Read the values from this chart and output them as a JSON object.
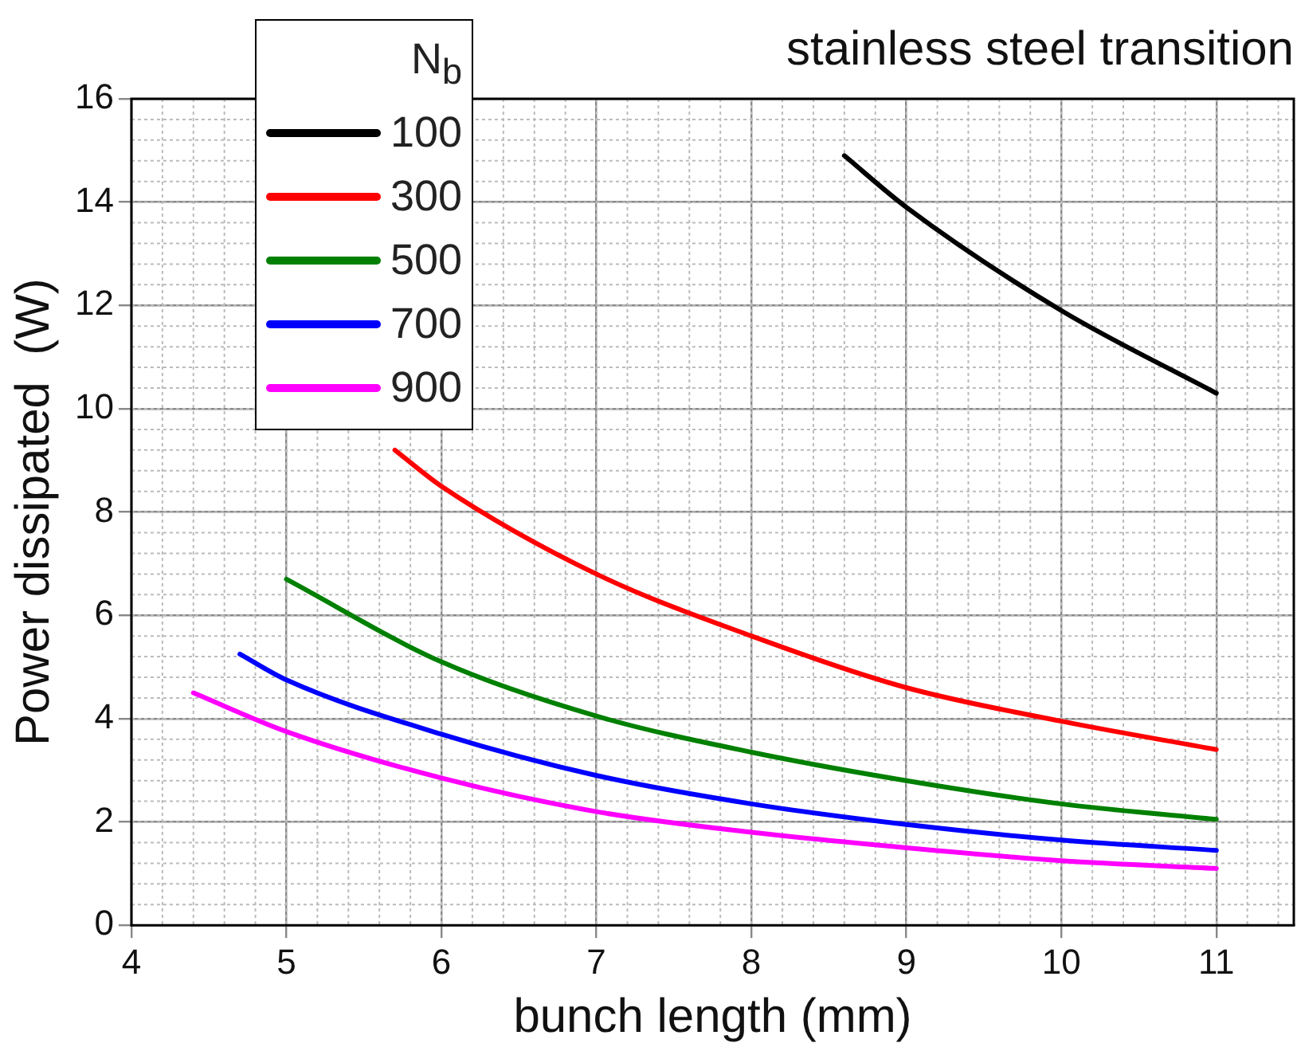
{
  "chart_data": {
    "type": "line",
    "title": "stainless steel transition",
    "xlabel": "bunch length (mm)",
    "ylabel": "Power dissipated  (W)",
    "legend_title": "N$_{b}$",
    "xlim": [
      4,
      11.5
    ],
    "xticks": [
      4,
      5,
      6,
      7,
      8,
      9,
      10,
      11
    ],
    "ylim": [
      0,
      16
    ],
    "yticks": [
      0,
      2,
      4,
      6,
      8,
      10,
      12,
      14,
      16
    ],
    "grid": true,
    "legend": "top left",
    "marker": "none",
    "line_style": "solid",
    "series": [
      {
        "name": "100",
        "color": "#000000",
        "x": [
          8.6,
          9,
          10,
          11
        ],
        "values": [
          14.9,
          13.9,
          11.9,
          10.3
        ]
      },
      {
        "name": "300",
        "color": "#ff0000",
        "x": [
          5.7,
          6,
          7,
          8,
          9,
          10,
          11
        ],
        "values": [
          9.2,
          8.5,
          6.8,
          5.6,
          4.6,
          3.95,
          3.4
        ]
      },
      {
        "name": "500",
        "color": "#008000",
        "x": [
          5,
          6,
          7,
          8,
          9,
          10,
          11
        ],
        "values": [
          6.7,
          5.1,
          4.05,
          3.35,
          2.8,
          2.35,
          2.05
        ]
      },
      {
        "name": "700",
        "color": "#0000ff",
        "x": [
          4.7,
          5,
          6,
          7,
          8,
          9,
          10,
          11
        ],
        "values": [
          5.25,
          4.75,
          3.7,
          2.9,
          2.35,
          1.95,
          1.65,
          1.45
        ]
      },
      {
        "name": "900",
        "color": "#ff00ff",
        "x": [
          4.4,
          5,
          6,
          7,
          8,
          9,
          10,
          11
        ],
        "values": [
          4.5,
          3.75,
          2.85,
          2.2,
          1.8,
          1.5,
          1.25,
          1.1
        ]
      }
    ]
  }
}
